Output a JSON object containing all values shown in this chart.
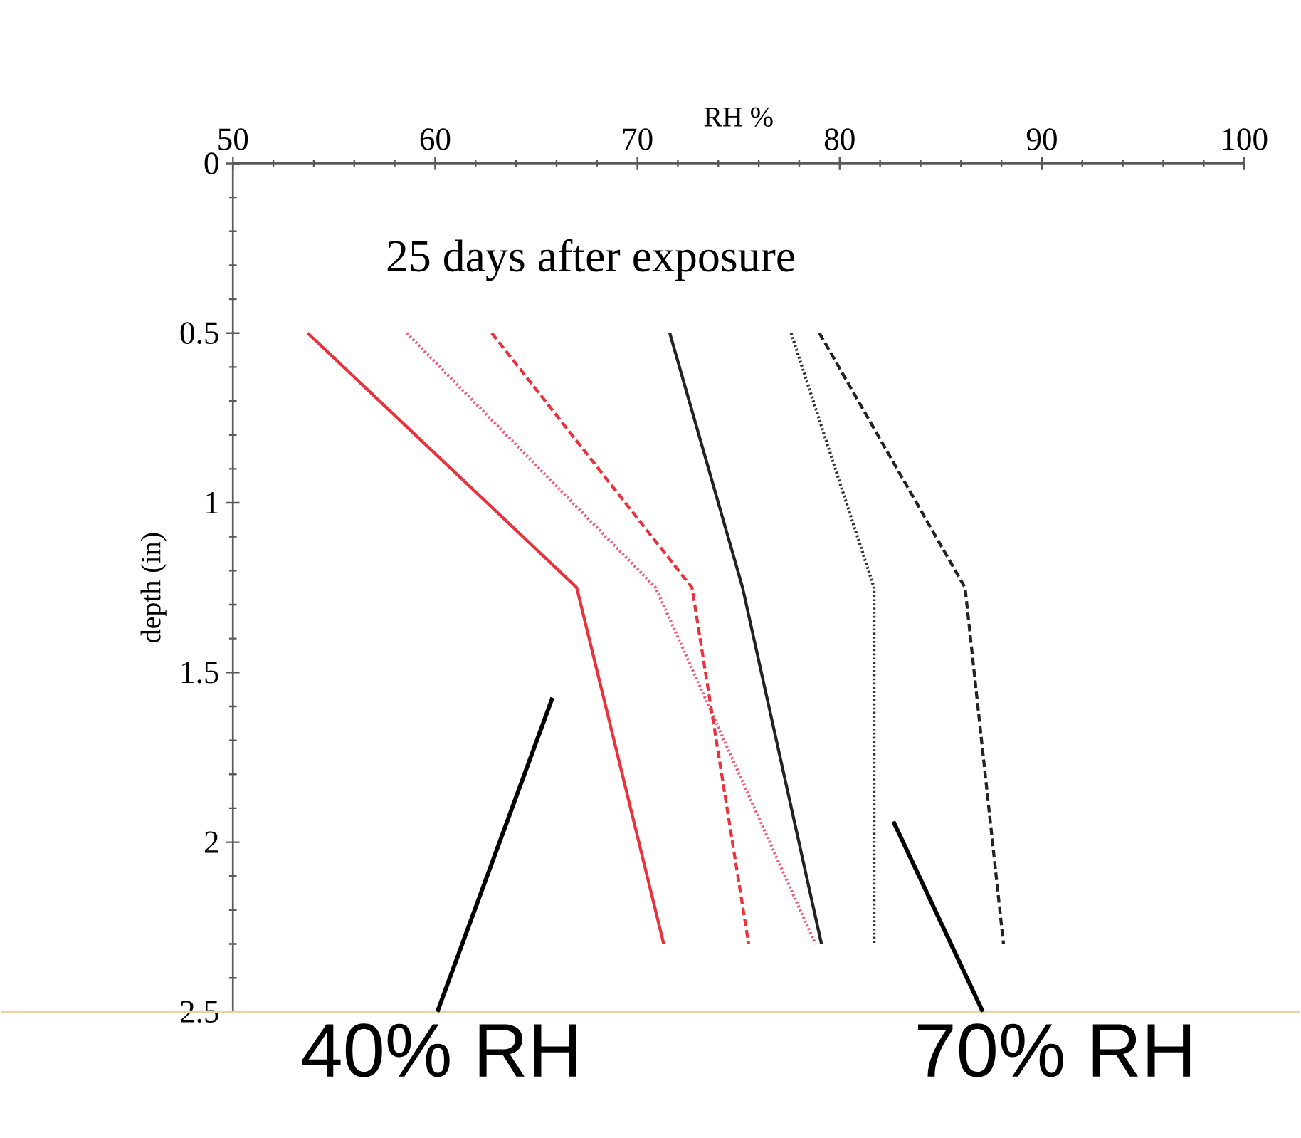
{
  "chart_data": {
    "type": "line",
    "xlabel": "RH %",
    "ylabel": "depth (in)",
    "xlim": [
      50,
      100
    ],
    "xticks": [
      50,
      60,
      70,
      80,
      90,
      100
    ],
    "ylim": [
      2.5,
      0
    ],
    "yticks": [
      0,
      0.5,
      1,
      1.5,
      2,
      2.5
    ],
    "series": [
      {
        "color": "#e8323c",
        "line_style": "solid",
        "x": [
          53.7,
          67.0,
          71.3
        ],
        "values": [
          0.5,
          1.25,
          2.3
        ]
      },
      {
        "color": "#e8607a",
        "line_style": "dotted",
        "x": [
          58.6,
          70.9,
          78.8
        ],
        "values": [
          0.5,
          1.25,
          2.3
        ]
      },
      {
        "color": "#e8323c",
        "line_style": "dashed",
        "x": [
          62.8,
          72.7,
          75.5
        ],
        "values": [
          0.5,
          1.25,
          2.3
        ]
      },
      {
        "color": "#222222",
        "line_style": "solid",
        "x": [
          71.6,
          75.2,
          79.1
        ],
        "values": [
          0.5,
          1.25,
          2.3
        ]
      },
      {
        "color": "#333333",
        "line_style": "dotted",
        "x": [
          77.6,
          81.7,
          81.7
        ],
        "values": [
          0.5,
          1.25,
          2.3
        ]
      },
      {
        "color": "#222222",
        "line_style": "dashed",
        "x": [
          79.0,
          86.2,
          88.1
        ],
        "values": [
          0.5,
          1.25,
          2.3
        ]
      }
    ],
    "marker": "none",
    "ref_lines": [
      {
        "axis": "y",
        "value": 2.5,
        "color": "#e8d2a8"
      }
    ],
    "annotations": [
      "25 days after exposure",
      "40% RH",
      "70% RH"
    ]
  }
}
